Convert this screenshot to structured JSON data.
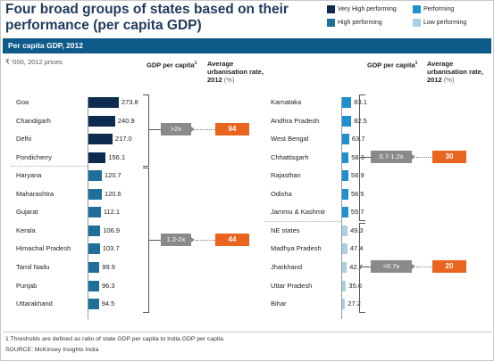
{
  "title": "Four broad groups of states based on their performance (per capita GDP)",
  "legend": [
    {
      "label": "Very High performing",
      "color": "#0d2a4f"
    },
    {
      "label": "Performing",
      "color": "#1f90cf"
    },
    {
      "label": "High performing",
      "color": "#1e6f99"
    },
    {
      "label": "Low performing",
      "color": "#a9cfe2"
    }
  ],
  "band_label": "Per capita GDP, 2012",
  "units": "₹ '000, 2012 prices",
  "col_headers": {
    "gdp": "GDP per capita",
    "gdp_sup": "1",
    "urb_line1": "Average",
    "urb_line2": "urbanisation rate,",
    "urb_line3": "2012",
    "urb_unit": "(%)"
  },
  "chart_data": {
    "type": "bar",
    "title": "Four broad groups of states based on their performance (per capita GDP)",
    "subtitle": "Per capita GDP, 2012",
    "units": "₹ '000, 2012 prices",
    "series": [
      {
        "name": "Very High performing",
        "color": "#0d2a4f",
        "categories": [
          "Goa",
          "Chandigarh",
          "Delhi",
          "Pondicherry"
        ],
        "values": [
          273.8,
          240.9,
          217.0,
          156.1
        ],
        "labels": [
          "273.8",
          "240.9",
          "217.0",
          "156.1"
        ],
        "gdp_ratio": ">2x",
        "urbanisation": "94"
      },
      {
        "name": "High performing",
        "color": "#1e6f99",
        "categories": [
          "Haryana",
          "Maharashtra",
          "Gujarat",
          "Kerala",
          "Himachal Pradesh",
          "Tamil Nadu",
          "Punjab",
          "Uttarakhand"
        ],
        "values": [
          120.7,
          120.6,
          112.1,
          106.9,
          103.7,
          99.9,
          96.3,
          94.5
        ],
        "labels": [
          "120.7",
          "120.6",
          "112.1",
          "106.9",
          "103.7",
          "99.9",
          "96.3",
          "94.5"
        ],
        "gdp_ratio": "1.2-2x",
        "urbanisation": "44"
      },
      {
        "name": "Performing",
        "color": "#1f90cf",
        "categories": [
          "Karnataka",
          "Andhra Pradesh",
          "West Bengal",
          "Chhattisgarh",
          "Rajasthan",
          "Odisha",
          "Jammu & Kashmir"
        ],
        "values": [
          83.1,
          82.5,
          63.7,
          58.3,
          56.9,
          56.5,
          55.7
        ],
        "labels": [
          "83.1",
          "82.5",
          "63.7",
          "58.3",
          "56.9",
          "56.5",
          "55.7"
        ],
        "gdp_ratio": "0.7-1.2x",
        "urbanisation": "30"
      },
      {
        "name": "Low performing",
        "color": "#a9cfe2",
        "categories": [
          "NE states",
          "Madhya Pradesh",
          "Jharkhand",
          "Uttar Pradesh",
          "Bihar"
        ],
        "values": [
          49.3,
          47.4,
          42.7,
          35.6,
          27.2
        ],
        "labels": [
          "49.3",
          "47.4",
          "42.7",
          "35.6",
          "27.2"
        ],
        "gdp_ratio": "<0.7x",
        "urbanisation": "20"
      }
    ]
  },
  "footnote": "1 Thresholds are defined as ratio of state GDP per capita to India GDP per capita",
  "source": "SOURCE: McKinsey Insights India"
}
